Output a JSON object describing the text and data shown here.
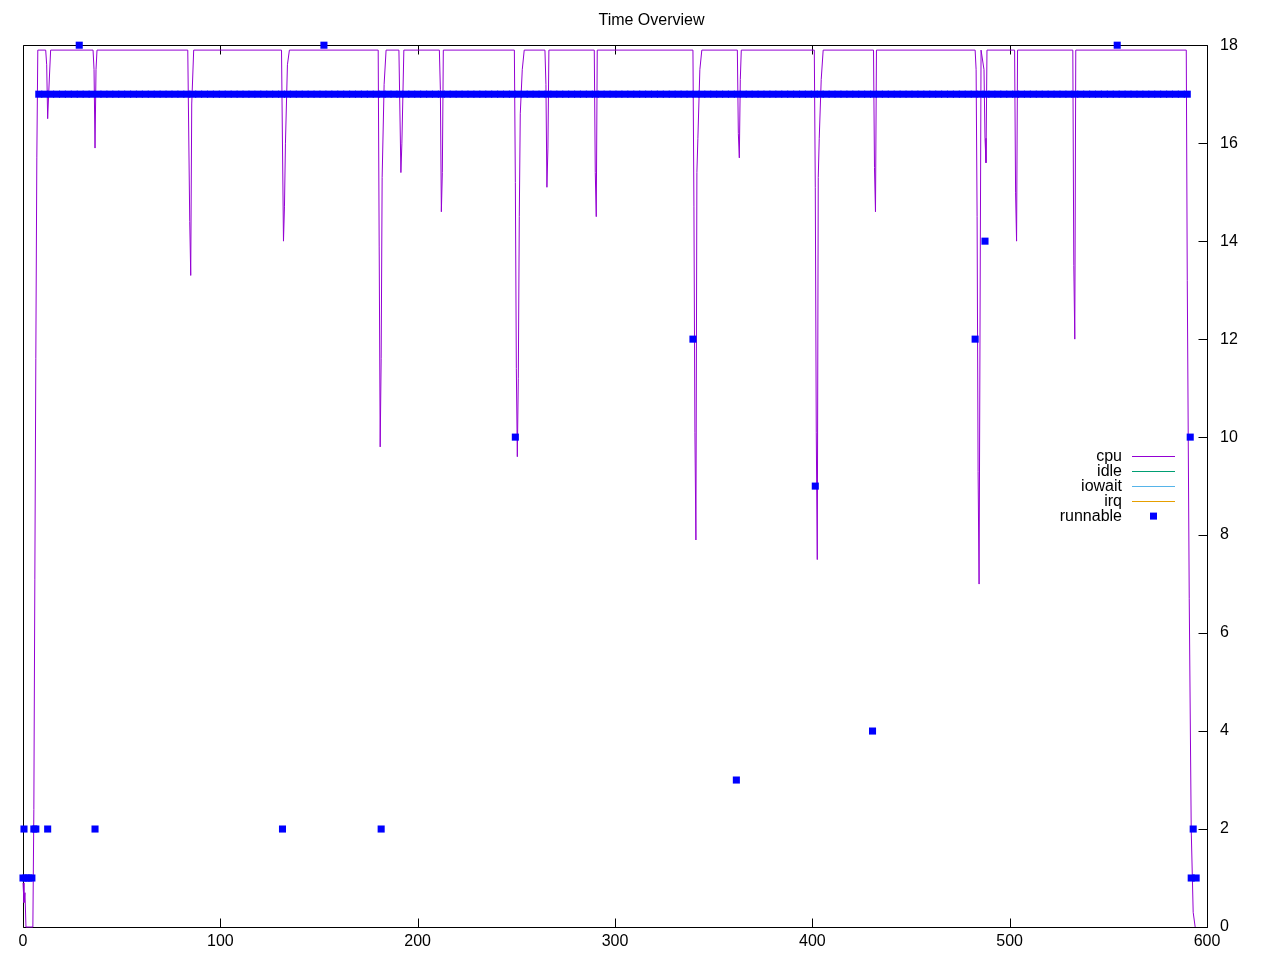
{
  "chart_data": {
    "type": "line",
    "title": "Time Overview",
    "xlim": [
      0,
      600
    ],
    "xticks": [
      0,
      100,
      200,
      300,
      400,
      500,
      600
    ],
    "ylim": [
      0,
      18
    ],
    "yticks": [
      0,
      2,
      4,
      6,
      8,
      10,
      12,
      14,
      16,
      18
    ],
    "legend": "right",
    "series": [
      {
        "name": "cpu",
        "color": "#9400d3",
        "x": [
          0,
          0.5,
          1,
          1.5,
          5,
          5.5,
          6,
          6.5,
          7,
          7.5,
          11.5,
          12,
          12.5,
          13,
          14,
          35.5,
          36,
          36.5,
          37,
          37.5,
          83.5,
          84.5,
          85,
          85.5,
          86.5,
          131,
          132,
          132.5,
          133,
          134,
          135,
          180,
          180.5,
          181,
          181.5,
          182,
          183,
          184,
          190.5,
          191.5,
          192,
          193,
          211,
          211.5,
          212,
          212.5,
          213,
          249,
          249.5,
          250,
          250.5,
          251,
          251.5,
          252,
          253,
          254,
          264.5,
          265,
          265.5,
          266,
          266.5,
          289.5,
          290,
          290.5,
          291,
          339.5,
          340,
          340.5,
          341,
          341.5,
          342,
          343,
          344,
          362,
          362.5,
          363,
          363.5,
          364,
          401,
          401.5,
          402,
          402.5,
          403,
          403.5,
          404.5,
          405.5,
          431,
          431.5,
          432,
          432.5,
          482.5,
          483,
          483.5,
          484,
          484.5,
          485.5,
          487,
          487.5,
          488,
          488.5,
          502.5,
          503,
          503.5,
          504,
          532,
          532.5,
          533,
          533.5,
          589.5,
          590,
          591,
          592,
          593,
          594
        ],
        "values": [
          0.9,
          0.5,
          0.7,
          0,
          0,
          2.4,
          7.1,
          11.6,
          15.7,
          17.9,
          17.9,
          17.6,
          16.5,
          17,
          17.9,
          17.9,
          17.5,
          15.9,
          17.5,
          17.9,
          17.9,
          14.4,
          13.3,
          16.8,
          17.9,
          17.9,
          14,
          14.7,
          16,
          17.6,
          17.9,
          17.9,
          13.9,
          9.8,
          11.6,
          15.3,
          17.2,
          17.9,
          17.9,
          15.4,
          16,
          17.9,
          17.9,
          17.1,
          14.6,
          15.4,
          17.9,
          17.9,
          15.2,
          11.4,
          9.6,
          11.2,
          14.5,
          16.6,
          17.5,
          17.9,
          17.9,
          17.2,
          15.1,
          15.9,
          17.9,
          17.9,
          15.4,
          14.5,
          17.9,
          17.9,
          14.7,
          10.1,
          7.9,
          15.4,
          16.1,
          17.5,
          17.9,
          17.9,
          16.2,
          15.7,
          17.3,
          17.9,
          17.9,
          15.1,
          10.1,
          7.5,
          15.3,
          16.1,
          17.3,
          17.9,
          17.9,
          15.5,
          14.6,
          17.9,
          17.9,
          17.5,
          14.5,
          9.3,
          7,
          17.9,
          17.5,
          16.1,
          15.6,
          17.9,
          17.9,
          15,
          14,
          17.9,
          17.9,
          13.5,
          12,
          17.9,
          17.9,
          13.2,
          6.7,
          2,
          0.3,
          0
        ]
      },
      {
        "name": "idle",
        "color": "#009e73"
      },
      {
        "name": "iowait",
        "color": "#56b4e9"
      },
      {
        "name": "irq",
        "color": "#e69f00"
      },
      {
        "name": "runnable",
        "type": "scatter",
        "marker": "square",
        "color": "#0000ff",
        "x": [
          0,
          0.5,
          1.5,
          3,
          4.5,
          5.5,
          6.5,
          12.5,
          28.5,
          36.5,
          131.5,
          152.5,
          181.5,
          249.5,
          339.5,
          361.5,
          401.5,
          430.5,
          482.5,
          487.5,
          554.5,
          591.5,
          592,
          593,
          594.5,
          8,
          11,
          14,
          17,
          20,
          23,
          26,
          29,
          32,
          35,
          38,
          41,
          44,
          47,
          50,
          53,
          56,
          59,
          62,
          65,
          68,
          71,
          74,
          77,
          80,
          83,
          86,
          89,
          92,
          95,
          98,
          101,
          104,
          107,
          110,
          113,
          116,
          119,
          122,
          125,
          128,
          131,
          134,
          137,
          140,
          143,
          146,
          149,
          152,
          155,
          158,
          161,
          164,
          167,
          170,
          173,
          176,
          179,
          182,
          185,
          188,
          191,
          194,
          197,
          200,
          203,
          206,
          209,
          212,
          215,
          218,
          221,
          224,
          227,
          230,
          233,
          236,
          239,
          242,
          245,
          248,
          251,
          254,
          257,
          260,
          263,
          266,
          269,
          272,
          275,
          278,
          281,
          284,
          287,
          290,
          293,
          296,
          299,
          302,
          305,
          308,
          311,
          314,
          317,
          320,
          323,
          326,
          329,
          332,
          335,
          338,
          341,
          344,
          347,
          350,
          353,
          356,
          359,
          362,
          365,
          368,
          371,
          374,
          377,
          380,
          383,
          386,
          389,
          392,
          395,
          398,
          401,
          404,
          407,
          410,
          413,
          416,
          419,
          422,
          425,
          428,
          431,
          434,
          437,
          440,
          443,
          446,
          449,
          452,
          455,
          458,
          461,
          464,
          467,
          470,
          473,
          476,
          479,
          482,
          485,
          488,
          491,
          494,
          497,
          500,
          503,
          506,
          509,
          512,
          515,
          518,
          521,
          524,
          527,
          530,
          533,
          536,
          539,
          542,
          545,
          548,
          551,
          554,
          557,
          560,
          563,
          566,
          569,
          572,
          575,
          578,
          581,
          584,
          587,
          590
        ],
        "values": [
          1,
          2,
          1,
          1,
          1,
          2,
          2,
          2,
          18,
          2,
          2,
          18,
          2,
          10,
          12,
          3,
          9,
          4,
          12,
          14,
          18,
          10,
          1,
          2,
          1,
          17,
          17,
          17,
          17,
          17,
          17,
          17,
          17,
          17,
          17,
          17,
          17,
          17,
          17,
          17,
          17,
          17,
          17,
          17,
          17,
          17,
          17,
          17,
          17,
          17,
          17,
          17,
          17,
          17,
          17,
          17,
          17,
          17,
          17,
          17,
          17,
          17,
          17,
          17,
          17,
          17,
          17,
          17,
          17,
          17,
          17,
          17,
          17,
          17,
          17,
          17,
          17,
          17,
          17,
          17,
          17,
          17,
          17,
          17,
          17,
          17,
          17,
          17,
          17,
          17,
          17,
          17,
          17,
          17,
          17,
          17,
          17,
          17,
          17,
          17,
          17,
          17,
          17,
          17,
          17,
          17,
          17,
          17,
          17,
          17,
          17,
          17,
          17,
          17,
          17,
          17,
          17,
          17,
          17,
          17,
          17,
          17,
          17,
          17,
          17,
          17,
          17,
          17,
          17,
          17,
          17,
          17,
          17,
          17,
          17,
          17,
          17,
          17,
          17,
          17,
          17,
          17,
          17,
          17,
          17,
          17,
          17,
          17,
          17,
          17,
          17,
          17,
          17,
          17,
          17,
          17,
          17,
          17,
          17,
          17,
          17,
          17,
          17,
          17,
          17,
          17,
          17,
          17,
          17,
          17,
          17,
          17,
          17,
          17,
          17,
          17,
          17,
          17,
          17,
          17,
          17,
          17,
          17,
          17,
          17,
          17,
          17,
          17,
          17,
          17,
          17,
          17,
          17,
          17,
          17,
          17,
          17,
          17,
          17,
          17,
          17,
          17,
          17,
          17,
          17,
          17,
          17,
          17,
          17,
          17,
          17,
          17,
          17,
          17,
          17,
          17,
          17,
          17,
          17,
          17
        ]
      }
    ]
  }
}
